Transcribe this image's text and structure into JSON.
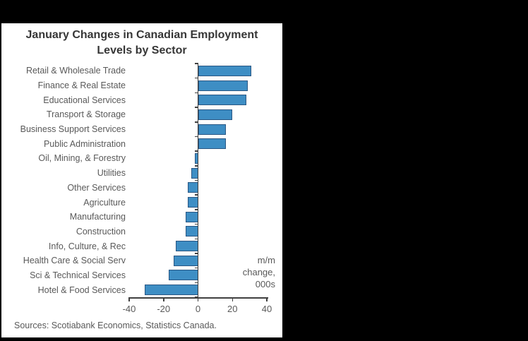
{
  "panel": {
    "title_line1": "January Changes in Canadian Employment",
    "title_line2": "Levels by Sector",
    "source": "Sources: Scotiabank Economics, Statistics Canada.",
    "annotation": {
      "line1": "m/m",
      "line2": "change,",
      "line3": "000s"
    }
  },
  "colors": {
    "background": "#000000",
    "panel_background": "#FFFFFF",
    "bar_fill": "#3E8EC4",
    "bar_border": "#2A5784",
    "axis": "#404040",
    "label_text": "#595959",
    "title_text": "#363636"
  },
  "chart_data": {
    "type": "bar",
    "orientation": "horizontal",
    "title": "January Changes in Canadian Employment Levels by Sector",
    "unit_annotation": "m/m change, 000s",
    "categories": [
      "Retail & Wholesale Trade",
      "Finance & Real Estate",
      "Educational Services",
      "Transport & Storage",
      "Business Support Services",
      "Public Administration",
      "Oil, Mining, & Forestry",
      "Utilities",
      "Other Services",
      "Agriculture",
      "Manufacturing",
      "Construction",
      "Info, Culture, & Rec",
      "Health Care & Social Serv",
      "Sci & Technical Services",
      "Hotel & Food Services"
    ],
    "values": [
      31,
      29,
      28,
      20,
      16,
      16,
      -2,
      -4,
      -6,
      -6,
      -7,
      -7,
      -13,
      -14,
      -17,
      -31
    ],
    "xlabel": "",
    "ylabel": "",
    "xlim": [
      -40,
      40
    ],
    "xticks": [
      -40,
      -20,
      0,
      20,
      40
    ],
    "grid": false,
    "legend": false,
    "source": "Sources: Scotiabank Economics, Statistics Canada."
  }
}
